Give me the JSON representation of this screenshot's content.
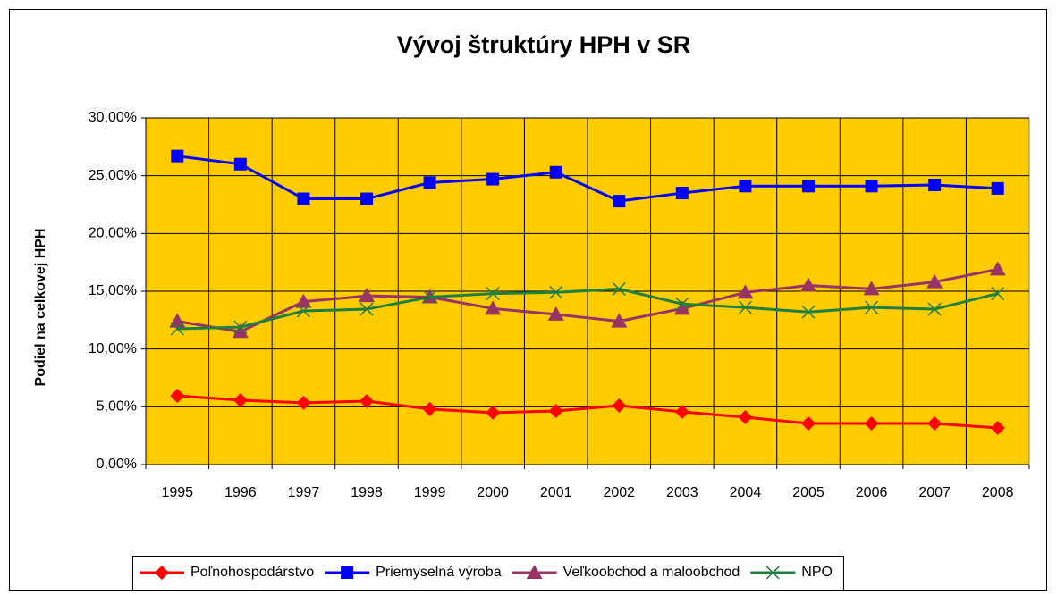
{
  "chart_data": {
    "type": "line",
    "title": "Vývoj štruktúry HPH v SR",
    "y_label": "Podiel na celkovej HPH",
    "categories": [
      "1995",
      "1996",
      "1997",
      "1998",
      "1999",
      "2000",
      "2001",
      "2002",
      "2003",
      "2004",
      "2005",
      "2006",
      "2007",
      "2008"
    ],
    "series": [
      {
        "name": "Poľnohospodárstvo",
        "color": "#ff0000",
        "marker": "diamond",
        "values": [
          5.95,
          5.57,
          5.34,
          5.49,
          4.8,
          4.49,
          4.64,
          5.1,
          4.56,
          4.1,
          3.56,
          3.56,
          3.56,
          3.17
        ]
      },
      {
        "name": "Priemyselná výroba",
        "color": "#0000ff",
        "marker": "square",
        "values": [
          26.7,
          26.0,
          23.0,
          23.0,
          24.4,
          24.7,
          25.3,
          22.8,
          23.5,
          24.1,
          24.1,
          24.1,
          24.2,
          23.9
        ]
      },
      {
        "name": "Veľkoobchod a maloobchod",
        "color": "#993366",
        "marker": "triangle",
        "values": [
          12.4,
          11.5,
          14.1,
          14.6,
          14.5,
          13.5,
          13.0,
          12.4,
          13.5,
          14.9,
          15.5,
          15.2,
          15.8,
          16.9
        ]
      },
      {
        "name": "NPO",
        "color": "#1f7f3f",
        "marker": "x",
        "values": [
          11.75,
          11.9,
          13.3,
          13.45,
          14.5,
          14.8,
          14.9,
          15.2,
          13.9,
          13.6,
          13.2,
          13.6,
          13.45,
          14.8
        ]
      }
    ],
    "ylim": [
      0,
      30
    ],
    "yticks": [
      {
        "value": 0,
        "label": "0,00%"
      },
      {
        "value": 5,
        "label": "5,00%"
      },
      {
        "value": 10,
        "label": "10,00%"
      },
      {
        "value": 15,
        "label": "15,00%"
      },
      {
        "value": 20,
        "label": "20,00%"
      },
      {
        "value": 25,
        "label": "25,00%"
      },
      {
        "value": 30,
        "label": "30,00%"
      }
    ],
    "grid": true,
    "plot_background": "#ffcc00",
    "legend": "bottom"
  }
}
